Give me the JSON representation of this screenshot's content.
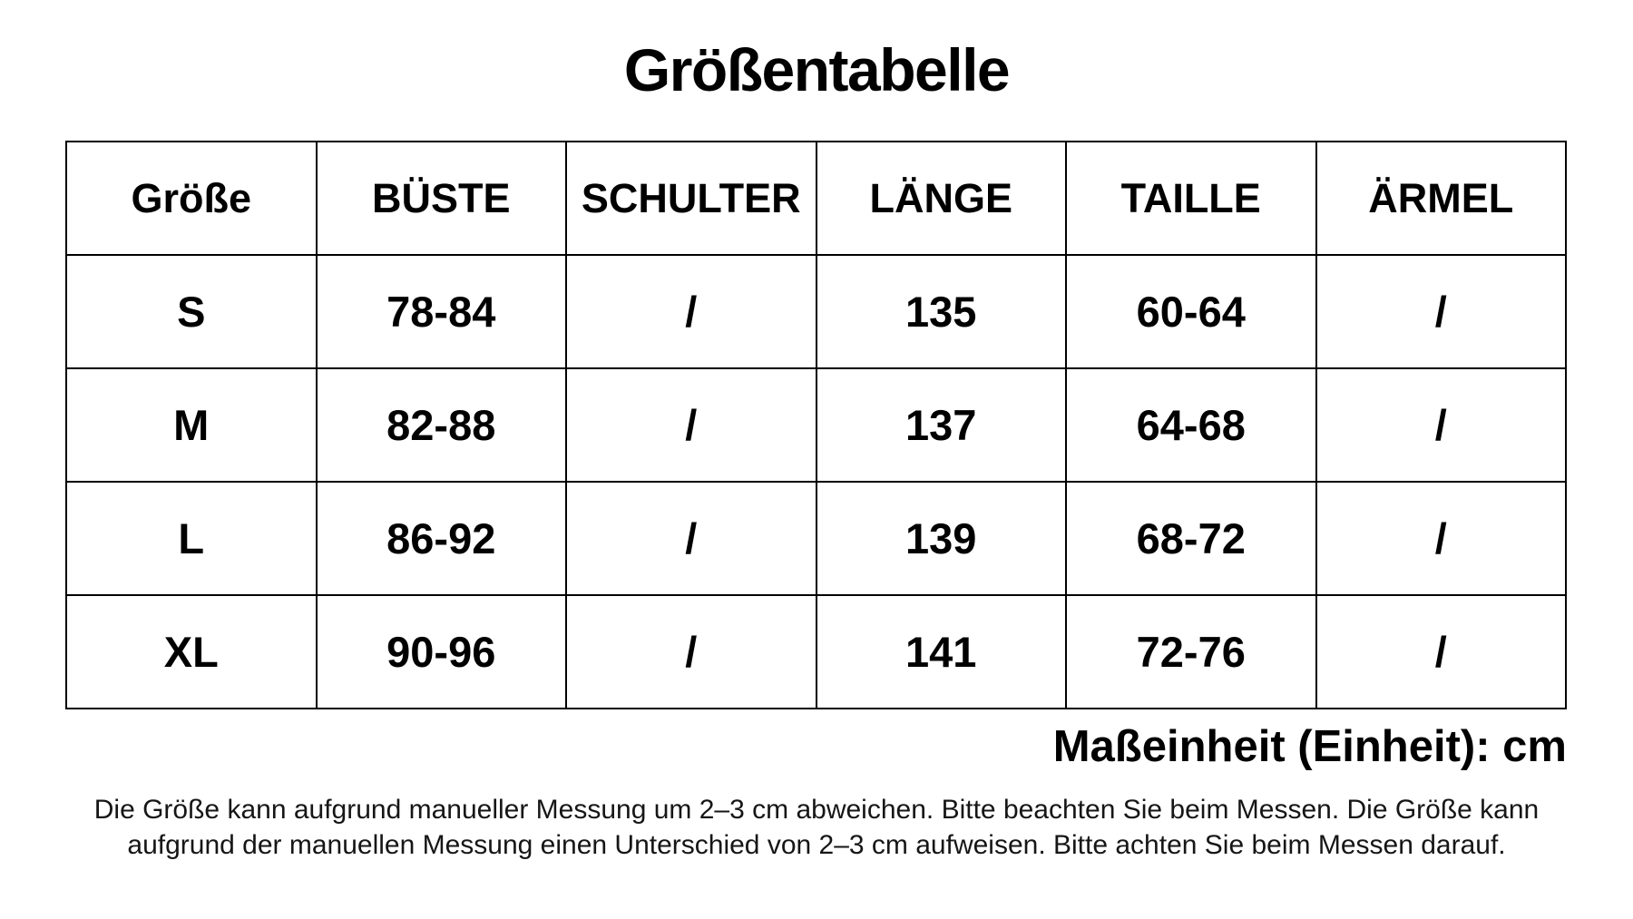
{
  "chart_data": {
    "type": "table",
    "title": "Größentabelle",
    "columns": [
      "Größe",
      "BÜSTE",
      "SCHULTER",
      "LÄNGE",
      "TAILLE",
      "ÄRMEL"
    ],
    "rows": [
      [
        "S",
        "78-84",
        "/",
        "135",
        "60-64",
        "/"
      ],
      [
        "M",
        "82-88",
        "/",
        "137",
        "64-68",
        "/"
      ],
      [
        "L",
        "86-92",
        "/",
        "139",
        "68-72",
        "/"
      ],
      [
        "XL",
        "90-96",
        "/",
        "141",
        "72-76",
        "/"
      ]
    ],
    "unit_note": "Maßeinheit (Einheit): cm",
    "layout_hints": {
      "header_row": true,
      "grid": "on",
      "columns_equal_width": true
    }
  },
  "disclaimer": {
    "line1": "Die Größe kann aufgrund manueller Messung um 2–3 cm abweichen. Bitte beachten Sie beim Messen. Die Größe kann",
    "line2": "aufgrund der manuellen Messung einen Unterschied von 2–3 cm aufweisen. Bitte achten Sie beim Messen darauf."
  },
  "colors": {
    "background": "#ffffff",
    "text": "#000000",
    "border": "#000000",
    "disclaimer_text": "#161616"
  }
}
